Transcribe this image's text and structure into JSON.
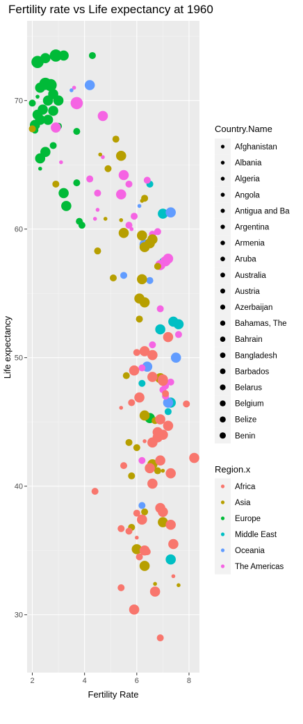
{
  "chart_data": {
    "type": "scatter",
    "title": "Fertility rate vs Life expectancy at 1960",
    "xlabel": "Fertility Rate",
    "ylabel": "Life expectancy",
    "xlim": [
      1.8,
      8.4
    ],
    "ylim": [
      25.5,
      76.2
    ],
    "x_ticks": [
      2,
      4,
      6,
      8
    ],
    "y_ticks": [
      30,
      40,
      50,
      60,
      70
    ],
    "grid": true,
    "legend_position": "right",
    "size_legend": {
      "title": "Country.Name",
      "entries": [
        "Afghanistan",
        "Albania",
        "Algeria",
        "Angola",
        "Antigua and Ba",
        "Argentina",
        "Armenia",
        "Aruba",
        "Australia",
        "Austria",
        "Azerbaijan",
        "Bahamas, The",
        "Bahrain",
        "Bangladesh",
        "Barbados",
        "Belarus",
        "Belgium",
        "Belize",
        "Benin"
      ]
    },
    "color_legend": {
      "title": "Region.x",
      "entries": [
        {
          "name": "Africa",
          "color": "#F8766D"
        },
        {
          "name": "Asia",
          "color": "#B79F00"
        },
        {
          "name": "Europe",
          "color": "#00BA38"
        },
        {
          "name": "Middle East",
          "color": "#00BFC4"
        },
        {
          "name": "Oceania",
          "color": "#619CFF"
        },
        {
          "name": "The Americas",
          "color": "#F564E3"
        }
      ]
    },
    "series": [
      {
        "name": "Europe",
        "color": "#00BA38",
        "points": [
          [
            2.2,
            73.0,
            4
          ],
          [
            2.5,
            73.3,
            3
          ],
          [
            2.9,
            73.5,
            4
          ],
          [
            3.2,
            73.5,
            3
          ],
          [
            4.3,
            73.5,
            2
          ],
          [
            2.5,
            71.3,
            4
          ],
          [
            2.7,
            71.2,
            4
          ],
          [
            2.3,
            71.0,
            3
          ],
          [
            2.0,
            69.8,
            2
          ],
          [
            2.2,
            70.3,
            1
          ],
          [
            2.8,
            70.5,
            3
          ],
          [
            2.6,
            70.0,
            3
          ],
          [
            3.0,
            70.0,
            3
          ],
          [
            2.8,
            69.2,
            3
          ],
          [
            2.4,
            69.3,
            3
          ],
          [
            2.2,
            68.9,
            3
          ],
          [
            2.3,
            68.5,
            3
          ],
          [
            2.1,
            68.1,
            3
          ],
          [
            2.6,
            68.5,
            3
          ],
          [
            3.0,
            68.0,
            2
          ],
          [
            3.7,
            67.6,
            2
          ],
          [
            2.1,
            67.7,
            2
          ],
          [
            2.5,
            66.0,
            3
          ],
          [
            2.3,
            65.5,
            3
          ],
          [
            2.8,
            66.5,
            2
          ],
          [
            2.3,
            64.7,
            1
          ],
          [
            3.2,
            62.8,
            3
          ],
          [
            3.7,
            63.6,
            2
          ],
          [
            3.3,
            61.8,
            3
          ],
          [
            3.8,
            60.6,
            2
          ],
          [
            3.9,
            60.3,
            2
          ],
          [
            6.5,
            45.3,
            3
          ]
        ]
      },
      {
        "name": "Middle East",
        "color": "#00BFC4",
        "points": [
          [
            6.5,
            63.5,
            2
          ],
          [
            7.0,
            61.2,
            3
          ],
          [
            7.0,
            57.5,
            2
          ],
          [
            6.9,
            52.2,
            3
          ],
          [
            7.4,
            52.8,
            3
          ],
          [
            7.6,
            52.6,
            3
          ],
          [
            6.2,
            48.0,
            2
          ],
          [
            7.2,
            45.8,
            2
          ],
          [
            7.3,
            46.5,
            3
          ],
          [
            7.3,
            34.3,
            3
          ]
        ]
      },
      {
        "name": "Oceania",
        "color": "#619CFF",
        "points": [
          [
            3.5,
            70.8,
            1
          ],
          [
            4.2,
            71.2,
            3
          ],
          [
            7.3,
            61.3,
            3
          ],
          [
            6.3,
            58.8,
            3
          ],
          [
            6.5,
            56.0,
            2
          ],
          [
            6.1,
            61.8,
            1
          ],
          [
            5.5,
            56.4,
            2
          ],
          [
            6.4,
            49.3,
            3
          ],
          [
            7.5,
            50.0,
            3
          ],
          [
            7.2,
            46.5,
            3
          ],
          [
            6.2,
            38.5,
            2
          ]
        ]
      },
      {
        "name": "The Americas",
        "color": "#F564E3",
        "points": [
          [
            3.6,
            71.0,
            1
          ],
          [
            3.7,
            69.8,
            4
          ],
          [
            2.9,
            67.9,
            3
          ],
          [
            4.7,
            68.8,
            3
          ],
          [
            3.1,
            65.2,
            1
          ],
          [
            4.7,
            65.6,
            1
          ],
          [
            4.2,
            63.9,
            2
          ],
          [
            5.5,
            64.2,
            3
          ],
          [
            5.4,
            62.7,
            3
          ],
          [
            5.7,
            63.5,
            2
          ],
          [
            6.4,
            63.8,
            2
          ],
          [
            4.5,
            62.8,
            2
          ],
          [
            4.5,
            61.5,
            1
          ],
          [
            5.9,
            61.0,
            2
          ],
          [
            5.7,
            60.3,
            2
          ],
          [
            5.8,
            60.0,
            1
          ],
          [
            4.4,
            60.8,
            1
          ],
          [
            6.6,
            59.6,
            2
          ],
          [
            6.8,
            59.8,
            2
          ],
          [
            6.9,
            57.2,
            3
          ],
          [
            7.1,
            57.5,
            3
          ],
          [
            7.2,
            57.7,
            3
          ],
          [
            6.9,
            53.8,
            2
          ],
          [
            7.6,
            51.8,
            2
          ],
          [
            6.6,
            51.0,
            2
          ],
          [
            6.2,
            49.2,
            2
          ],
          [
            7.3,
            48.1,
            2
          ],
          [
            7.1,
            47.8,
            2
          ],
          [
            7.1,
            47.0,
            2
          ],
          [
            6.2,
            42.0,
            2
          ],
          [
            7.0,
            47.5,
            2
          ]
        ]
      },
      {
        "name": "Asia",
        "color": "#B79F00",
        "points": [
          [
            2.0,
            67.8,
            2
          ],
          [
            5.2,
            67.0,
            2
          ],
          [
            4.6,
            65.8,
            1
          ],
          [
            5.4,
            65.7,
            3
          ],
          [
            4.9,
            64.7,
            2
          ],
          [
            2.9,
            63.5,
            2
          ],
          [
            6.2,
            62.2,
            1
          ],
          [
            6.3,
            62.4,
            2
          ],
          [
            4.8,
            60.8,
            1
          ],
          [
            5.4,
            60.7,
            1
          ],
          [
            6.2,
            59.5,
            3
          ],
          [
            6.6,
            59.2,
            3
          ],
          [
            5.5,
            59.7,
            3
          ],
          [
            6.3,
            58.6,
            3
          ],
          [
            6.5,
            58.9,
            3
          ],
          [
            4.5,
            58.3,
            2
          ],
          [
            5.1,
            56.2,
            2
          ],
          [
            6.2,
            56.1,
            3
          ],
          [
            6.8,
            57.1,
            2
          ],
          [
            6.1,
            54.6,
            3
          ],
          [
            6.3,
            54.3,
            3
          ],
          [
            5.6,
            48.6,
            2
          ],
          [
            6.1,
            53.0,
            2
          ],
          [
            6.9,
            48.4,
            3
          ],
          [
            6.3,
            45.5,
            3
          ],
          [
            6.7,
            45.1,
            2
          ],
          [
            5.7,
            43.4,
            2
          ],
          [
            6.0,
            43.0,
            2
          ],
          [
            6.6,
            41.7,
            3
          ],
          [
            6.8,
            41.2,
            2
          ],
          [
            7.0,
            41.2,
            1
          ],
          [
            5.8,
            40.8,
            2
          ],
          [
            6.3,
            38.0,
            2
          ],
          [
            7.0,
            37.2,
            3
          ],
          [
            5.8,
            36.8,
            2
          ],
          [
            6.0,
            35.1,
            3
          ],
          [
            6.3,
            33.8,
            3
          ],
          [
            6.7,
            32.4,
            1
          ],
          [
            7.6,
            32.3,
            1
          ]
        ]
      },
      {
        "name": "Africa",
        "color": "#F8766D",
        "points": [
          [
            7.2,
            51.6,
            3
          ],
          [
            6.6,
            48.5,
            3
          ],
          [
            7.0,
            48.2,
            3
          ],
          [
            6.3,
            50.5,
            3
          ],
          [
            6.0,
            50.4,
            2
          ],
          [
            6.6,
            50.2,
            3
          ],
          [
            5.9,
            49.0,
            3
          ],
          [
            7.0,
            48.3,
            3
          ],
          [
            5.8,
            46.5,
            2
          ],
          [
            6.1,
            46.9,
            3
          ],
          [
            5.4,
            46.1,
            1
          ],
          [
            7.1,
            47.2,
            2
          ],
          [
            7.9,
            46.4,
            2
          ],
          [
            6.9,
            45.2,
            3
          ],
          [
            6.8,
            43.8,
            3
          ],
          [
            6.6,
            43.4,
            3
          ],
          [
            7.0,
            44.0,
            3
          ],
          [
            6.8,
            44.2,
            3
          ],
          [
            7.2,
            44.7,
            3
          ],
          [
            6.3,
            43.5,
            1
          ],
          [
            5.5,
            41.6,
            2
          ],
          [
            6.5,
            41.4,
            3
          ],
          [
            7.3,
            41.0,
            3
          ],
          [
            8.2,
            42.2,
            3
          ],
          [
            6.9,
            42.0,
            3
          ],
          [
            6.6,
            40.2,
            3
          ],
          [
            4.4,
            39.6,
            2
          ],
          [
            6.0,
            37.9,
            2
          ],
          [
            6.9,
            38.3,
            3
          ],
          [
            7.0,
            38.0,
            3
          ],
          [
            6.2,
            37.4,
            3
          ],
          [
            5.4,
            36.7,
            2
          ],
          [
            7.3,
            37.0,
            3
          ],
          [
            5.7,
            36.5,
            2
          ],
          [
            6.0,
            36.0,
            1
          ],
          [
            7.4,
            35.5,
            3
          ],
          [
            6.3,
            35.0,
            3
          ],
          [
            6.4,
            34.9,
            2
          ],
          [
            6.1,
            34.5,
            2
          ],
          [
            7.4,
            33.0,
            1
          ],
          [
            5.4,
            32.1,
            2
          ],
          [
            6.7,
            31.8,
            3
          ],
          [
            5.9,
            30.4,
            3
          ],
          [
            6.9,
            28.2,
            2
          ]
        ]
      }
    ]
  }
}
